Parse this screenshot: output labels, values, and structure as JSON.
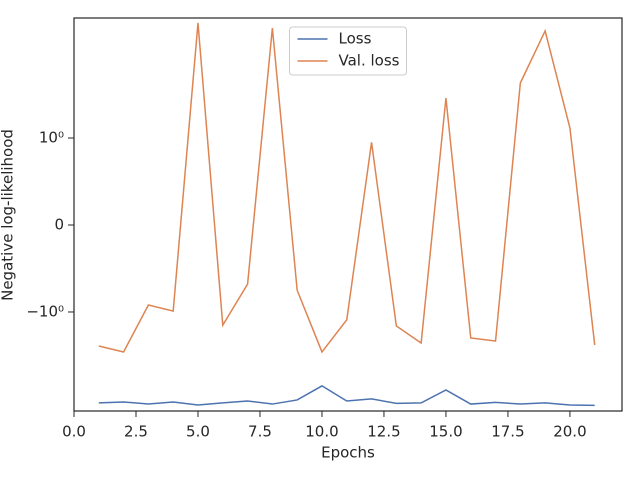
{
  "chart_data": {
    "type": "line",
    "x_label": "Epochs",
    "y_label": "Negative log-likelihood",
    "x": [
      1,
      2,
      3,
      4,
      5,
      6,
      7,
      8,
      9,
      10,
      11,
      12,
      13,
      14,
      15,
      16,
      17,
      18,
      19,
      20,
      21
    ],
    "series": [
      {
        "name": "Loss",
        "color": "#4c72b0",
        "values": [
          -14.5,
          -14.1,
          -15.0,
          -14.1,
          -15.4,
          -14.5,
          -13.7,
          -15.0,
          -13.3,
          -8.8,
          -13.7,
          -12.9,
          -14.7,
          -14.5,
          -9.9,
          -15.0,
          -14.3,
          -15.0,
          -14.5,
          -15.4,
          -15.6
        ]
      },
      {
        "name": "Val. loss",
        "color": "#dd8452",
        "values": [
          -2.72,
          -3.24,
          -0.92,
          -0.99,
          29.5,
          -1.47,
          -0.68,
          25.4,
          -0.75,
          -3.24,
          -1.26,
          0.95,
          -1.51,
          -2.49,
          3.24,
          -2.15,
          -2.35,
          5.04,
          23.3,
          1.34,
          -2.64
        ]
      }
    ],
    "xlim": [
      0,
      22.1
    ],
    "xticks": [
      {
        "value": 0,
        "label": "0.0"
      },
      {
        "value": 2.5,
        "label": "2.5"
      },
      {
        "value": 5,
        "label": "5.0"
      },
      {
        "value": 7.5,
        "label": "7.5"
      },
      {
        "value": 10,
        "label": "10.0"
      },
      {
        "value": 12.5,
        "label": "12.5"
      },
      {
        "value": 15,
        "label": "15.0"
      },
      {
        "value": 17.5,
        "label": "17.5"
      },
      {
        "value": 20,
        "label": "20.0"
      }
    ],
    "ylim": [
      -18.4,
      34.1
    ],
    "yticks": [
      {
        "value": -1,
        "label": "−10⁰"
      },
      0,
      {
        "value": 1,
        "label": "10⁰"
      }
    ],
    "yscale": "symlog",
    "linthresh": 1,
    "legend": "upper center"
  }
}
